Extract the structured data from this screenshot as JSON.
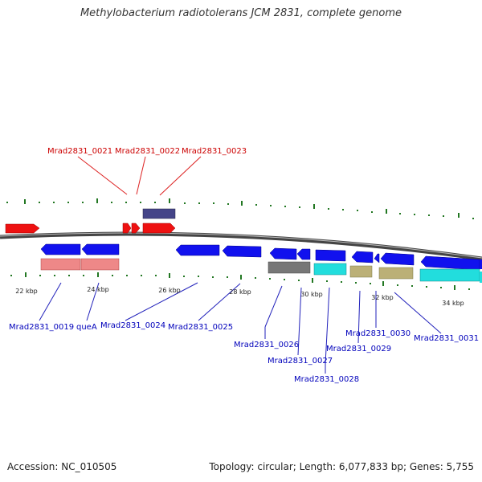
{
  "title": "Methylobacterium radiotolerans JCM 2831, complete genome",
  "footer": {
    "accession": "Accession: NC_010505",
    "topology": "Topology: circular; Length: 6,077,833 bp; Genes: 5,755"
  },
  "colors": {
    "red_gene": "#ee1111",
    "blue_gene": "#1111ee",
    "pink_gene": "#ee8888",
    "navy_gene": "#444488",
    "gray_gene": "#777777",
    "cyan_gene": "#22dddd",
    "khaki_gene": "#bbb077",
    "tick": "#227722",
    "label_red": "#cc0000",
    "label_blue": "#0000bb"
  },
  "scale": {
    "ticks": [
      "22 kbp",
      "24 kbp",
      "26 kbp",
      "28 kbp",
      "30 kbp",
      "32 kbp",
      "34 kbp"
    ]
  },
  "top_labels": [
    "Mrad2831_0021",
    "Mrad2831_0022",
    "Mrad2831_0023"
  ],
  "bottom_labels": [
    "Mrad2831_0019",
    "queA",
    "Mrad2831_0024",
    "Mrad2831_0025",
    "Mrad2831_0026",
    "Mrad2831_0027",
    "Mrad2831_0028",
    "Mrad2831_0029",
    "Mrad2831_0030",
    "Mrad2831_0031"
  ]
}
